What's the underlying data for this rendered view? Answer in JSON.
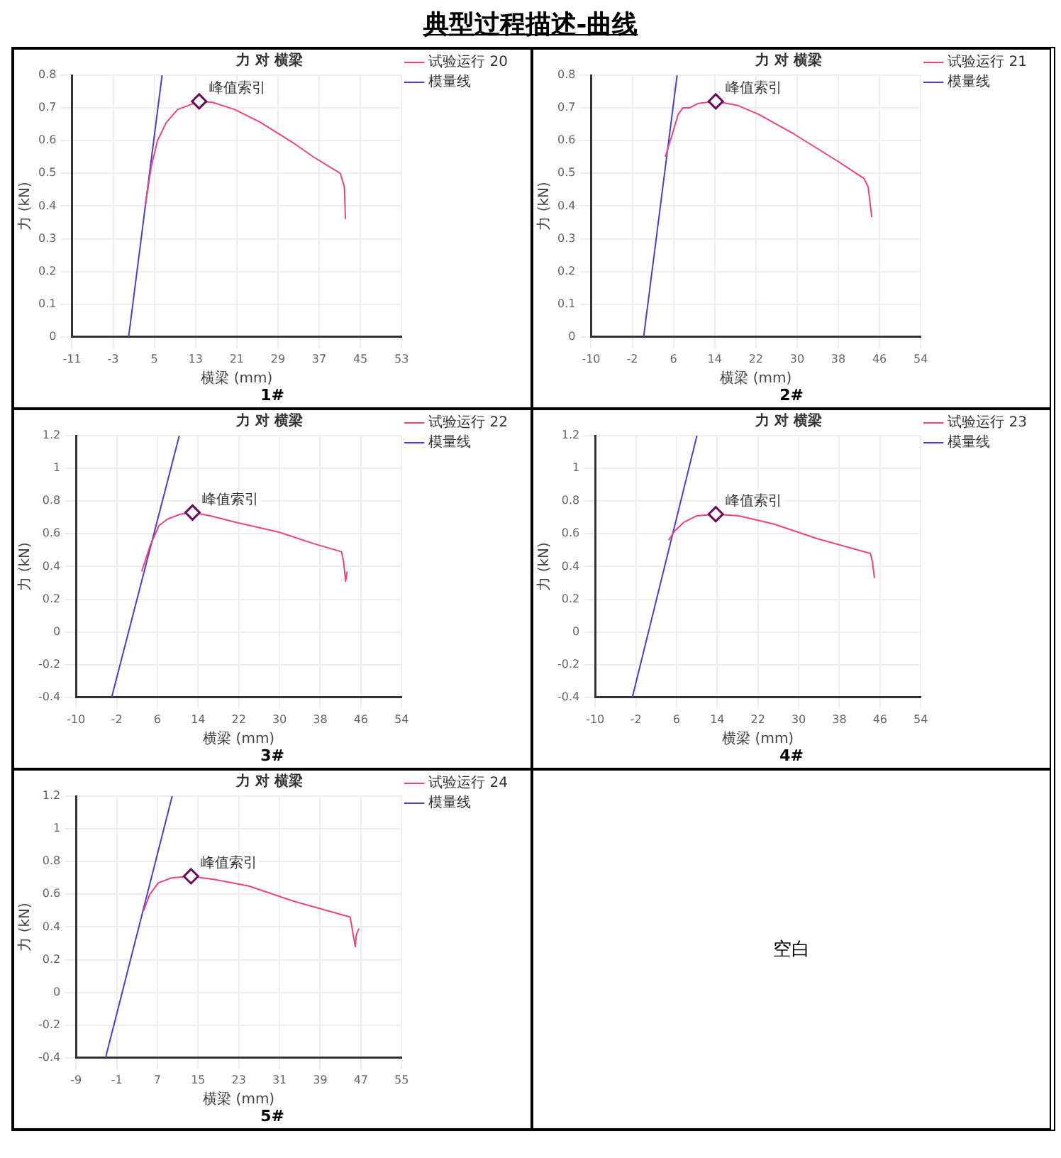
{
  "chart_data": [
    {
      "type": "line",
      "title": "力 对 横梁",
      "xlabel": "横梁 (mm)",
      "ylabel": "力 (kN)",
      "xlim": [
        -11,
        53
      ],
      "xticks": [
        -11,
        -3,
        5,
        13,
        21,
        29,
        37,
        45,
        53
      ],
      "ylim": [
        0,
        0.8
      ],
      "yticks": [
        0,
        0.1,
        0.2,
        0.3,
        0.4,
        0.5,
        0.6,
        0.7,
        0.8
      ],
      "grid": true,
      "legend": "top right",
      "series": [
        {
          "name": "试验运行 20",
          "color": "#f0437a",
          "x": [
            3.2,
            4.4,
            5.6,
            7.3,
            9.5,
            13.7,
            16.3,
            20.6,
            25.7,
            31.7,
            35.9,
            41.1,
            41.9,
            42.1
          ],
          "values": [
            0.4,
            0.52,
            0.6,
            0.655,
            0.695,
            0.72,
            0.717,
            0.695,
            0.655,
            0.596,
            0.55,
            0.5,
            0.458,
            0.36
          ]
        },
        {
          "name": "模量线",
          "color": "#4b3fd0",
          "x": [
            0,
            6.5
          ],
          "values": [
            0,
            0.8
          ]
        }
      ],
      "annotations": [
        "典型过程描述-曲线",
        {
          "text": "峰值索引",
          "x": 13.7,
          "y": 0.72
        },
        "1#"
      ]
    },
    {
      "type": "line",
      "title": "力 对 横梁",
      "xlabel": "横梁 (mm)",
      "ylabel": "力 (kN)",
      "xlim": [
        -10,
        54
      ],
      "xticks": [
        -10,
        -2,
        6,
        14,
        22,
        30,
        38,
        46,
        54
      ],
      "ylim": [
        0,
        0.8
      ],
      "yticks": [
        0,
        0.1,
        0.2,
        0.3,
        0.4,
        0.5,
        0.6,
        0.7,
        0.8
      ],
      "grid": true,
      "legend": "top right",
      "series": [
        {
          "name": "试验运行 21",
          "color": "#f0437a",
          "x": [
            4.4,
            5.7,
            6.9,
            7.8,
            9.1,
            10.8,
            14.2,
            18.4,
            22.6,
            29.4,
            37.9,
            43,
            43.8,
            44.5
          ],
          "values": [
            0.55,
            0.616,
            0.68,
            0.7,
            0.7,
            0.714,
            0.72,
            0.708,
            0.68,
            0.62,
            0.537,
            0.484,
            0.458,
            0.366
          ]
        },
        {
          "name": "模量线",
          "color": "#4b3fd0",
          "x": [
            0.2,
            6.7
          ],
          "values": [
            0,
            0.8
          ]
        }
      ],
      "annotations": [
        {
          "text": "峰值索引",
          "x": 14.2,
          "y": 0.72
        },
        "2#"
      ]
    },
    {
      "type": "line",
      "title": "力 对 横梁",
      "xlabel": "横梁 (mm)",
      "ylabel": "力 (kN)",
      "xlim": [
        -10,
        54
      ],
      "xticks": [
        -10,
        -2,
        6,
        14,
        22,
        30,
        38,
        46,
        54
      ],
      "ylim": [
        -0.4,
        1.2
      ],
      "yticks": [
        -0.4,
        -0.2,
        0,
        0.2,
        0.4,
        0.6,
        0.8,
        1,
        1.2
      ],
      "grid": true,
      "legend": "top right",
      "series": [
        {
          "name": "试验运行 22",
          "color": "#f0437a",
          "x": [
            2.9,
            4.6,
            6.3,
            8.0,
            10.5,
            12.9,
            16.4,
            21.5,
            29.9,
            36.7,
            42.2,
            42.6,
            43.0,
            43.3
          ],
          "values": [
            0.37,
            0.53,
            0.65,
            0.69,
            0.72,
            0.73,
            0.71,
            0.67,
            0.61,
            0.54,
            0.49,
            0.43,
            0.31,
            0.37
          ]
        },
        {
          "name": "模量线",
          "color": "#4b3fd0",
          "x": [
            -3,
            10.3
          ],
          "values": [
            -0.4,
            1.2
          ]
        }
      ],
      "annotations": [
        {
          "text": "峰值索引",
          "x": 12.9,
          "y": 0.73
        },
        "3#"
      ]
    },
    {
      "type": "line",
      "title": "力 对 横梁",
      "xlabel": "横梁 (mm)",
      "ylabel": "力 (kN)",
      "xlim": [
        -10,
        54
      ],
      "xticks": [
        -10,
        -2,
        6,
        14,
        22,
        30,
        38,
        46,
        54
      ],
      "ylim": [
        -0.4,
        1.2
      ],
      "yticks": [
        -0.4,
        -0.2,
        0,
        0.2,
        0.4,
        0.6,
        0.8,
        1,
        1.2
      ],
      "grid": true,
      "legend": "top right",
      "series": [
        {
          "name": "试验运行 23",
          "color": "#f0437a",
          "x": [
            4.4,
            5.7,
            7.4,
            10.0,
            13.7,
            18.2,
            25.1,
            33.7,
            44.1,
            44.5,
            44.9
          ],
          "values": [
            0.56,
            0.62,
            0.67,
            0.71,
            0.72,
            0.71,
            0.66,
            0.57,
            0.48,
            0.43,
            0.33
          ]
        },
        {
          "name": "模量线",
          "color": "#4b3fd0",
          "x": [
            -2.7,
            10.0
          ],
          "values": [
            -0.4,
            1.2
          ]
        }
      ],
      "annotations": [
        {
          "text": "峰值索引",
          "x": 13.7,
          "y": 0.72
        },
        "4#"
      ]
    },
    {
      "type": "line",
      "title": "力 对 横梁",
      "xlabel": "横梁 (mm)",
      "ylabel": "力 (kN)",
      "xlim": [
        -9,
        55
      ],
      "xticks": [
        -9,
        -1,
        7,
        15,
        23,
        31,
        39,
        47,
        55
      ],
      "ylim": [
        -0.4,
        1.2
      ],
      "yticks": [
        -0.4,
        -0.2,
        0,
        0.2,
        0.4,
        0.6,
        0.8,
        1,
        1.2
      ],
      "grid": true,
      "legend": "top right",
      "series": [
        {
          "name": "试验运行 24",
          "color": "#f0437a",
          "x": [
            4.3,
            5.5,
            7.2,
            9.8,
            13.6,
            18.2,
            25,
            33.5,
            44.9,
            45.5,
            45.9,
            46.1,
            46.6
          ],
          "values": [
            0.5,
            0.6,
            0.67,
            0.7,
            0.71,
            0.69,
            0.65,
            0.56,
            0.46,
            0.35,
            0.28,
            0.35,
            0.39
          ]
        },
        {
          "name": "模量线",
          "color": "#4b3fd0",
          "x": [
            -3.2,
            9.9
          ],
          "values": [
            -0.4,
            1.2
          ]
        }
      ],
      "annotations": [
        {
          "text": "峰值索引",
          "x": 13.6,
          "y": 0.71
        },
        "5#"
      ]
    },
    {
      "type": "other",
      "title": "空白"
    }
  ]
}
